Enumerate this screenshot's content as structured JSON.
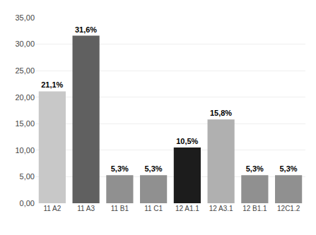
{
  "chart_data": {
    "type": "bar",
    "categories": [
      "11 A2",
      "11 A3",
      "11 B1",
      "11 C1",
      "12 A1.1",
      "12 A3.1",
      "12 B1.1",
      "12C1.2"
    ],
    "values": [
      21.1,
      31.6,
      5.3,
      5.3,
      10.5,
      15.8,
      5.3,
      5.3
    ],
    "value_labels": [
      "21,1%",
      "31,6%",
      "5,3%",
      "5,3%",
      "10,5%",
      "15,8%",
      "5,3%",
      "5,3%"
    ],
    "colors": [
      "#c8c8c8",
      "#606060",
      "#909090",
      "#909090",
      "#1c1c1c",
      "#b0b0b0",
      "#909090",
      "#909090"
    ],
    "ylim": [
      0,
      35
    ],
    "yticks": [
      {
        "value": 0,
        "label": "0,00"
      },
      {
        "value": 5,
        "label": "5,00"
      },
      {
        "value": 10,
        "label": "10,00"
      },
      {
        "value": 15,
        "label": "15,00"
      },
      {
        "value": 20,
        "label": "20,00"
      },
      {
        "value": 25,
        "label": "25,00"
      },
      {
        "value": 30,
        "label": "30,00"
      },
      {
        "value": 35,
        "label": "35,00"
      }
    ],
    "grid": true,
    "data_labels": true
  }
}
